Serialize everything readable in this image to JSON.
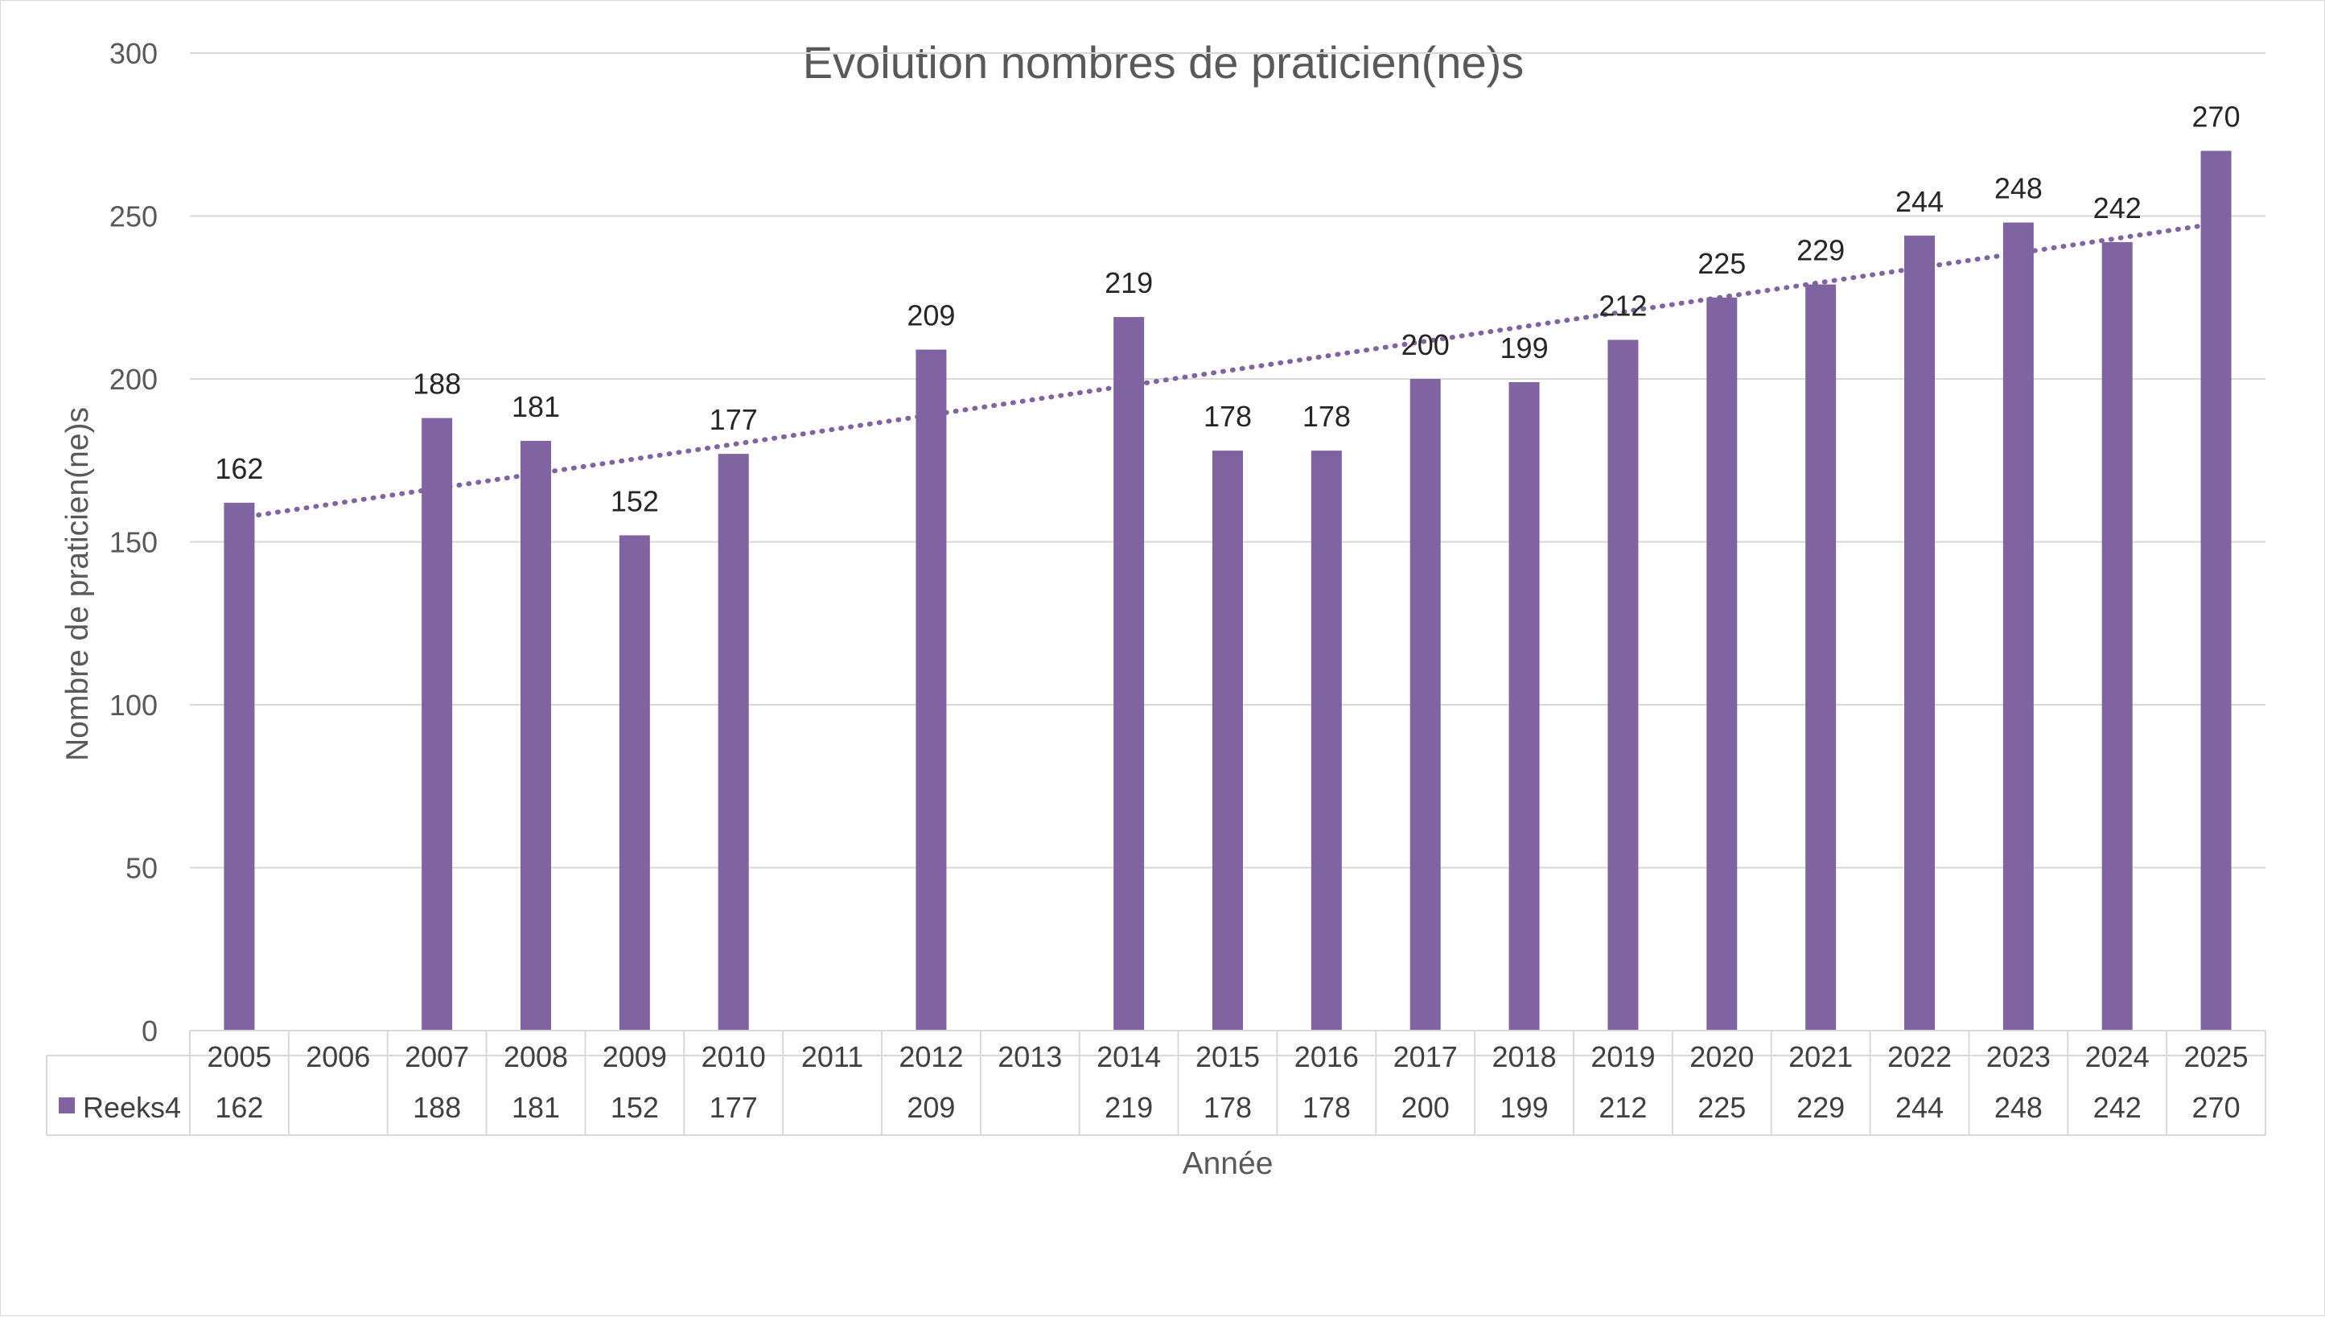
{
  "chart_data": {
    "type": "bar",
    "title": "Evolution nombres de praticien(ne)s",
    "xlabel": "Année",
    "ylabel": "Nombre de praticien(ne)s",
    "ylim": [
      0,
      300
    ],
    "yticks": [
      0,
      50,
      100,
      150,
      200,
      250,
      300
    ],
    "grid": true,
    "legend": "data-table",
    "categories": [
      "2005",
      "2006",
      "2007",
      "2008",
      "2009",
      "2010",
      "2011",
      "2012",
      "2013",
      "2014",
      "2015",
      "2016",
      "2017",
      "2018",
      "2019",
      "2020",
      "2021",
      "2022",
      "2023",
      "2024",
      "2025"
    ],
    "series": [
      {
        "name": "Reeks4",
        "color": "#8064a2",
        "values": [
          162,
          null,
          188,
          181,
          152,
          177,
          null,
          209,
          null,
          219,
          178,
          178,
          200,
          199,
          212,
          225,
          229,
          244,
          248,
          242,
          270
        ],
        "data_labels": true
      }
    ],
    "trendline": {
      "type": "linear",
      "style": "dotted",
      "color": "#8064a2"
    }
  }
}
